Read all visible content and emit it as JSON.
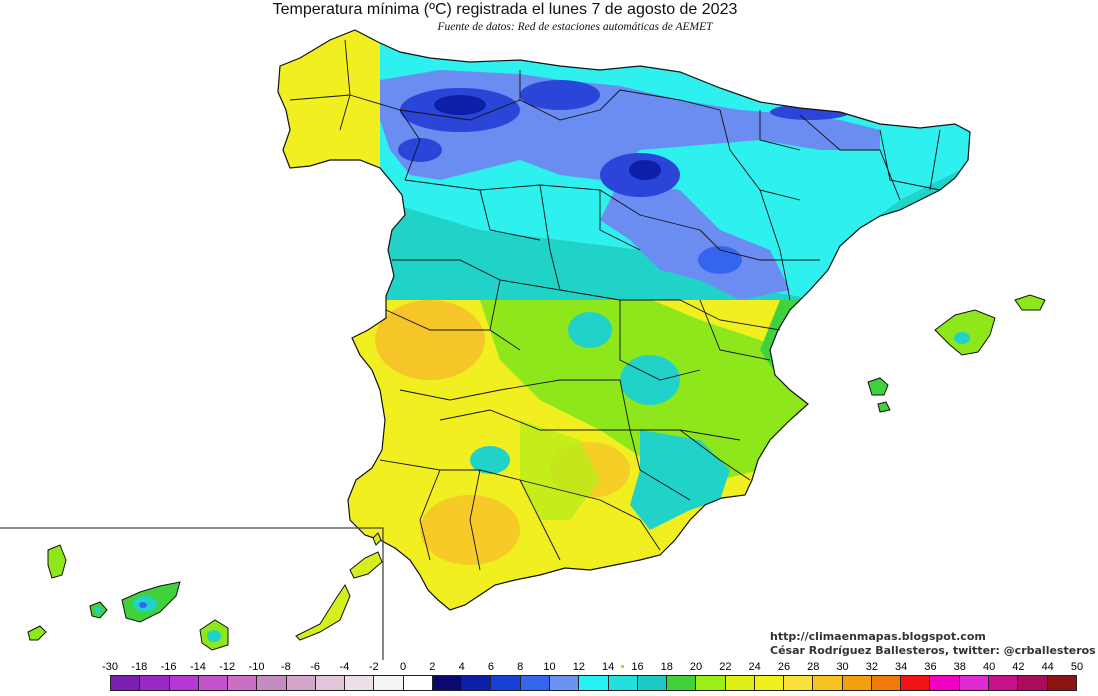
{
  "title": "Temperatura mínima (ºC) registrada el lunes 7 de agosto de 2023",
  "subtitle": "Fuente de datos: Red de estaciones automáticas de AEMET",
  "credits": {
    "blog": "http://climaenmapas.blogspot.com",
    "author": "César Rodríguez Ballesteros, twitter: @crballesteros"
  },
  "legend": {
    "ticks": [
      "-30",
      "-18",
      "-16",
      "-14",
      "-12",
      "-10",
      "-8",
      "-6",
      "-4",
      "-2",
      "0",
      "2",
      "4",
      "6",
      "8",
      "10",
      "12",
      "14",
      "16",
      "18",
      "20",
      "22",
      "24",
      "26",
      "28",
      "30",
      "32",
      "34",
      "36",
      "38",
      "40",
      "42",
      "44",
      "50"
    ],
    "colors": [
      "#7a1fb0",
      "#9b27c8",
      "#b437d6",
      "#c552cc",
      "#cc6fc4",
      "#c68bbf",
      "#d3a6ca",
      "#e0c6d8",
      "#ecdfe9",
      "#f4f4f4",
      "#ffffff",
      "#0a0a6e",
      "#0b1fa8",
      "#1540d6",
      "#3565ee",
      "#6b93f3",
      "#24f2f4",
      "#22e0de",
      "#1ccbc4",
      "#3fd23c",
      "#9aef18",
      "#dcf016",
      "#f2f01c",
      "#fae13a",
      "#f8c222",
      "#f4a00e",
      "#f07a08",
      "#f21414",
      "#f000c4",
      "#e02ad2",
      "#c8108a",
      "#aa0c5a",
      "#8e1414"
    ]
  },
  "map_colors": {
    "cold_north": "#2a45d8",
    "cool_north": "#6b8cf0",
    "cyan": "#2ef0ee",
    "teal": "#20d2c8",
    "green": "#8ee71a",
    "yellow_green": "#d6ef1c",
    "yellow": "#f2ef20",
    "orange": "#f6c528",
    "border": "#111111"
  }
}
